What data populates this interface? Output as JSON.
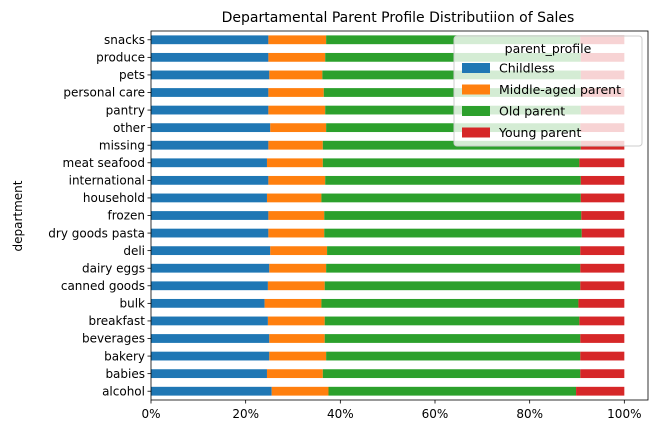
{
  "chart_data": {
    "type": "bar",
    "orientation": "horizontal",
    "stacked": true,
    "title": "Departamental Parent Profile Distributiion of Sales",
    "xlabel": "",
    "ylabel": "department",
    "xlim": [
      0,
      1.05
    ],
    "xticks": [
      0,
      0.2,
      0.4,
      0.6,
      0.8,
      1.0
    ],
    "xtick_labels": [
      "0%",
      "20%",
      "40%",
      "60%",
      "80%",
      "100%"
    ],
    "grid": false,
    "legend": {
      "title": "parent_profile",
      "placement": "top-right"
    },
    "categories": [
      "alcohol",
      "babies",
      "bakery",
      "beverages",
      "breakfast",
      "bulk",
      "canned goods",
      "dairy eggs",
      "deli",
      "dry goods pasta",
      "frozen",
      "household",
      "international",
      "meat seafood",
      "missing",
      "other",
      "pantry",
      "personal care",
      "pets",
      "produce",
      "snacks"
    ],
    "series": [
      {
        "name": "Childless",
        "color": "#1f77b4",
        "values": [
          0.255,
          0.245,
          0.25,
          0.25,
          0.247,
          0.24,
          0.247,
          0.25,
          0.252,
          0.248,
          0.248,
          0.245,
          0.248,
          0.245,
          0.248,
          0.252,
          0.248,
          0.248,
          0.25,
          0.248,
          0.248
        ]
      },
      {
        "name": "Middle-aged parent",
        "color": "#ff7f0e",
        "values": [
          0.12,
          0.118,
          0.12,
          0.117,
          0.12,
          0.12,
          0.12,
          0.12,
          0.12,
          0.118,
          0.118,
          0.115,
          0.12,
          0.118,
          0.115,
          0.118,
          0.12,
          0.117,
          0.112,
          0.12,
          0.122
        ]
      },
      {
        "name": "Old parent",
        "color": "#2ca02c",
        "values": [
          0.523,
          0.544,
          0.537,
          0.54,
          0.538,
          0.543,
          0.54,
          0.537,
          0.535,
          0.544,
          0.543,
          0.548,
          0.54,
          0.542,
          0.545,
          0.537,
          0.54,
          0.543,
          0.546,
          0.54,
          0.537
        ]
      },
      {
        "name": "Young parent",
        "color": "#d62728",
        "values": [
          0.102,
          0.093,
          0.093,
          0.093,
          0.095,
          0.097,
          0.093,
          0.093,
          0.093,
          0.09,
          0.091,
          0.092,
          0.092,
          0.095,
          0.092,
          0.093,
          0.092,
          0.092,
          0.092,
          0.092,
          0.093
        ]
      }
    ]
  }
}
